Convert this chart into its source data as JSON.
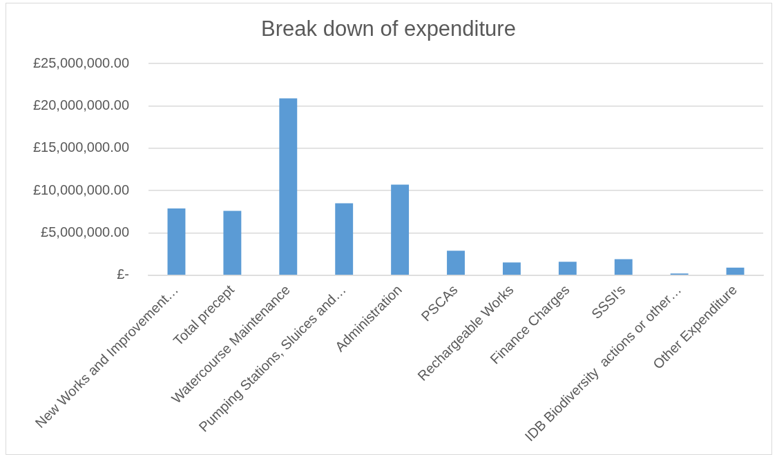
{
  "chart_data": {
    "type": "bar",
    "title": "Break down of expenditure",
    "categories": [
      "New Works and Improvement…",
      "Total precept",
      "Watercourse Maintenance",
      "Pumping Stations, Sluices and…",
      "Administration",
      "PSCAs",
      "Rechargeable Works",
      "Finance Charges",
      "SSSI's",
      "IDB Biodiversity  actions or other…",
      "Other Expenditure"
    ],
    "values": [
      7900000,
      7600000,
      20900000,
      8500000,
      10700000,
      2900000,
      1500000,
      1600000,
      1900000,
      200000,
      900000
    ],
    "color": "#5b9bd5",
    "ylim": [
      0,
      25000000
    ],
    "yticks": [
      {
        "value": 0,
        "label": "£-"
      },
      {
        "value": 5000000,
        "label": "£5,000,000.00"
      },
      {
        "value": 10000000,
        "label": "£10,000,000.00"
      },
      {
        "value": 15000000,
        "label": "£15,000,000.00"
      },
      {
        "value": 20000000,
        "label": "£20,000,000.00"
      },
      {
        "value": 25000000,
        "label": "£25,000,000.00"
      }
    ],
    "grid": "y",
    "legend": false
  }
}
